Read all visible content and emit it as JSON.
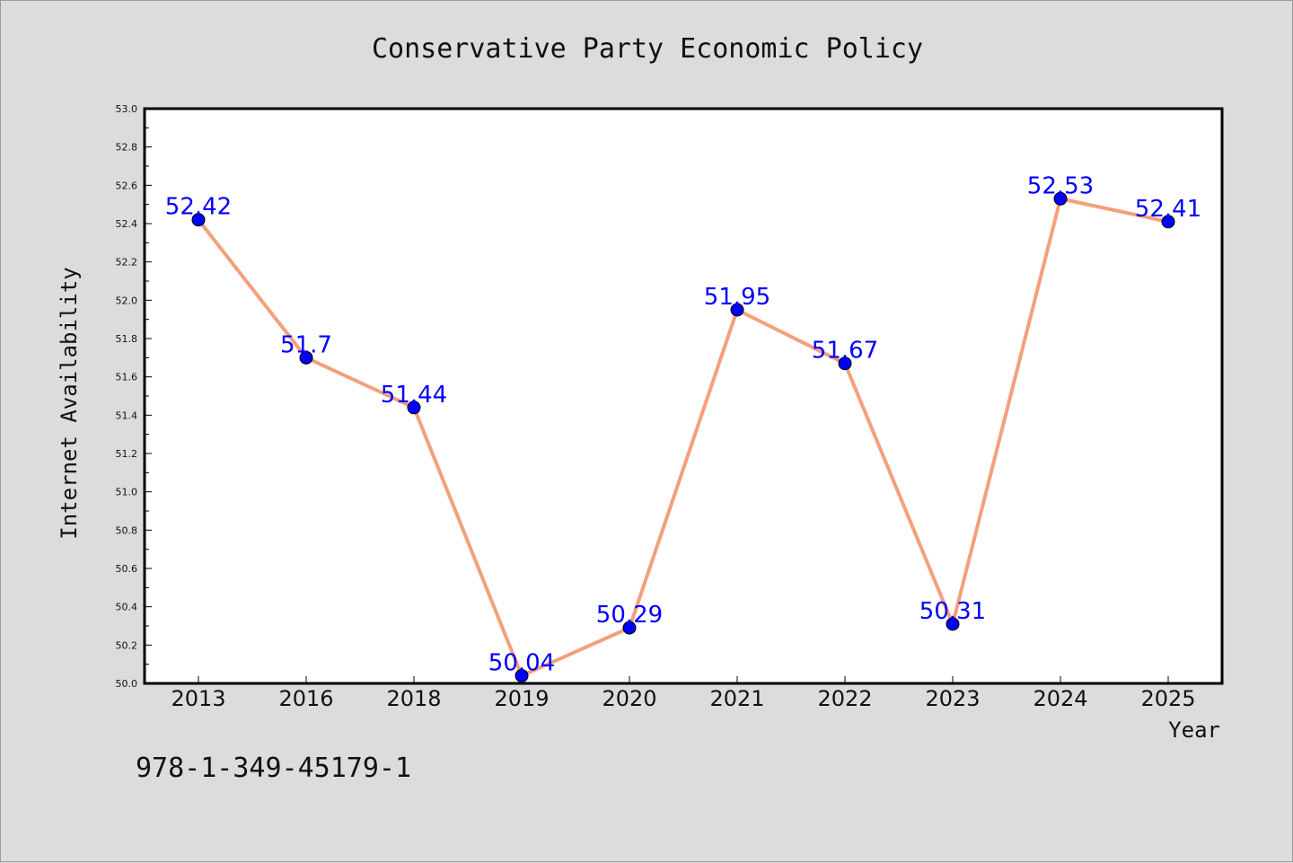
{
  "chart_data": {
    "type": "line",
    "title": "Conservative Party Economic Policy",
    "xlabel": "Year",
    "ylabel": "Internet Availability",
    "categories": [
      "2013",
      "2016",
      "2018",
      "2019",
      "2020",
      "2021",
      "2022",
      "2023",
      "2024",
      "2025"
    ],
    "series": [
      {
        "values": [
          52.42,
          51.7,
          51.44,
          50.04,
          50.29,
          51.95,
          51.67,
          50.31,
          52.53,
          52.41
        ],
        "data_labels": [
          "52.42",
          "51.7",
          "51.44",
          "50.04",
          "50.29",
          "51.95",
          "51.67",
          "50.31",
          "52.53",
          "52.41"
        ],
        "line_color": "#f4a07a",
        "marker_color": "#0000ff"
      }
    ],
    "ylim": [
      50.0,
      53.0
    ],
    "yticks": [
      "50.0",
      "50.2",
      "50.4",
      "50.6",
      "50.8",
      "51.0",
      "51.2",
      "51.4",
      "51.6",
      "51.8",
      "52.0",
      "52.2",
      "52.4",
      "52.6",
      "52.8",
      "53.0"
    ],
    "grid": false,
    "legend": "none"
  },
  "annotation": "978-1-349-45179-1",
  "colors": {
    "background": "#dcdcdc",
    "plot_background": "#ffffff",
    "line": "#f4a07a",
    "marker": "#0000ff",
    "label": "#0000ff"
  }
}
